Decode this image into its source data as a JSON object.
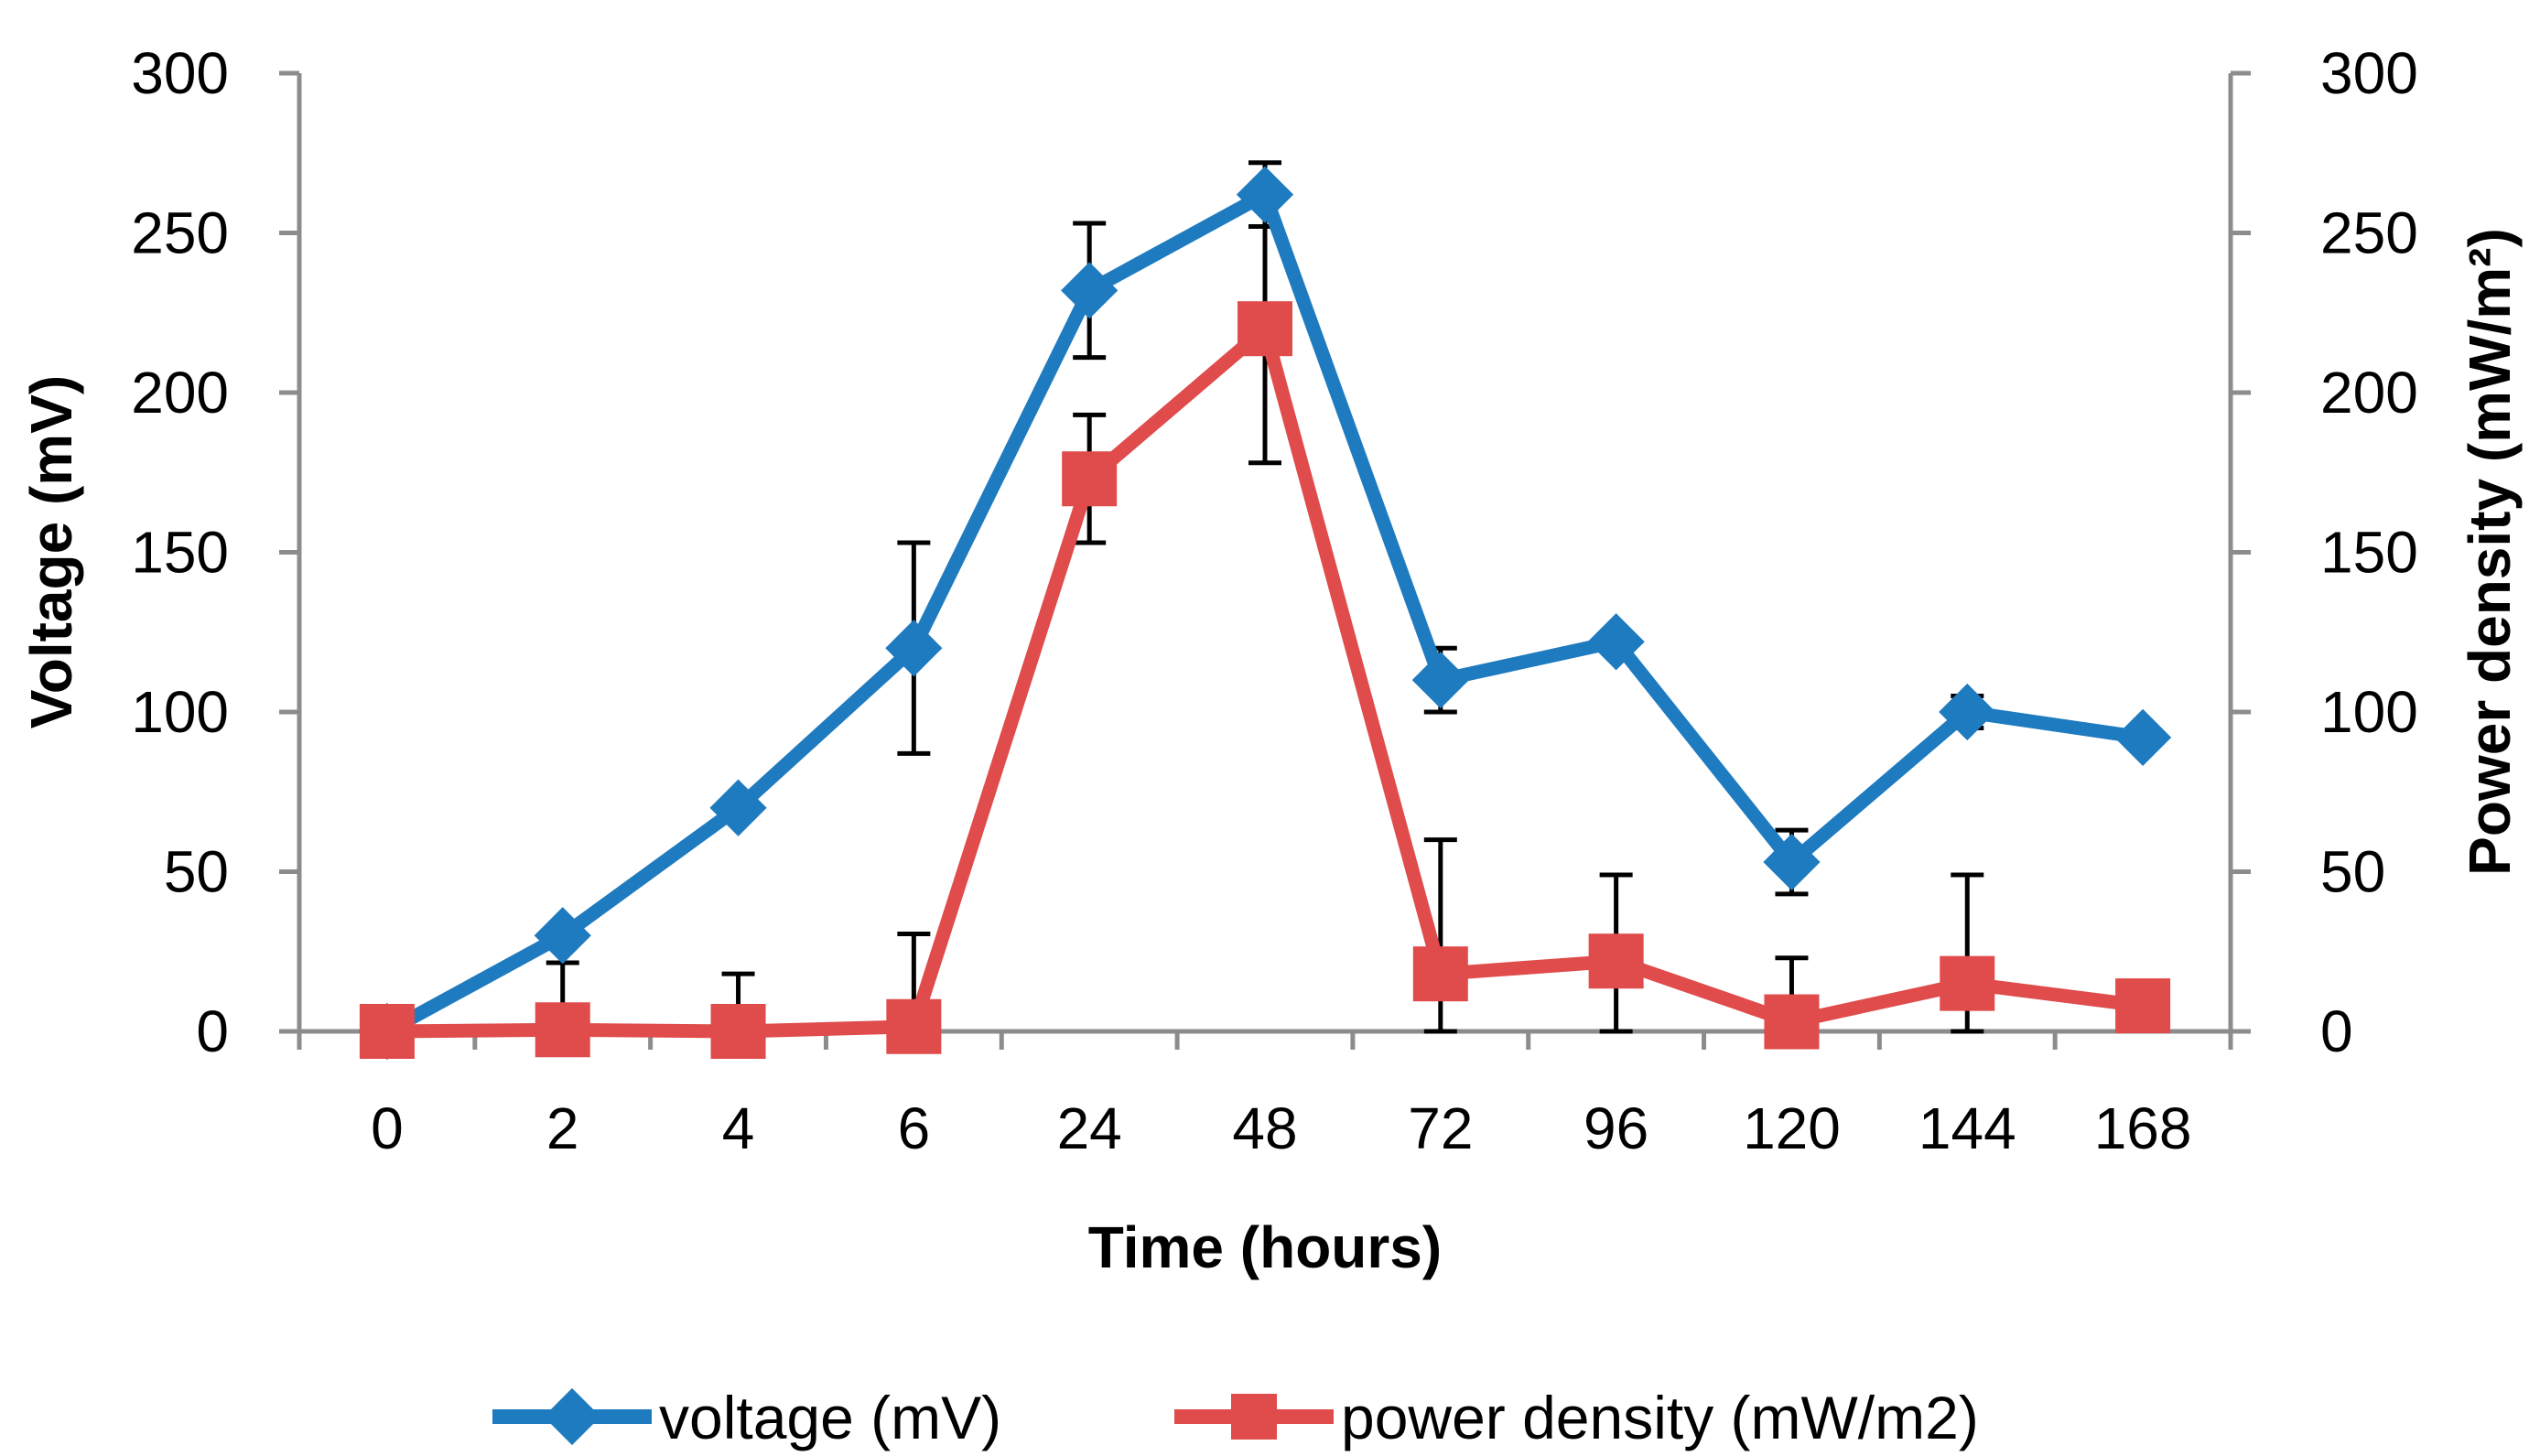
{
  "chart_data": {
    "type": "line",
    "title": "",
    "categories": [
      "0",
      "2",
      "4",
      "6",
      "24",
      "48",
      "72",
      "96",
      "120",
      "144",
      "168"
    ],
    "xlabel": "Time (hours)",
    "ylabel": "Voltage (mV)",
    "ylabel_right": "Power density (mW/m²)",
    "ylim": [
      0,
      300
    ],
    "ylim_right": [
      0,
      300
    ],
    "yticks": [
      "0",
      "50",
      "100",
      "150",
      "200",
      "250",
      "300"
    ],
    "yticks_right": [
      "0",
      "50",
      "100",
      "150",
      "200",
      "250",
      "300"
    ],
    "grid": false,
    "legend_position": "bottom",
    "series": [
      {
        "name": "voltage (mV)",
        "axis": "left",
        "marker": "diamond",
        "color": "#1F7BC0",
        "values": [
          0,
          30,
          70,
          120,
          232,
          262,
          110,
          122,
          53,
          100,
          92
        ],
        "errors": [
          null,
          null,
          null,
          33,
          21,
          10,
          10,
          null,
          10,
          5,
          null
        ]
      },
      {
        "name": "power density (mW/m2)",
        "axis": "right",
        "marker": "square",
        "color": "#E04B4B",
        "values": [
          0,
          0.5,
          0,
          1.5,
          173,
          220,
          18,
          22,
          3,
          15,
          8
        ],
        "errors": [
          null,
          21,
          18,
          29,
          20,
          42,
          42,
          27,
          20,
          34,
          null
        ]
      }
    ]
  }
}
